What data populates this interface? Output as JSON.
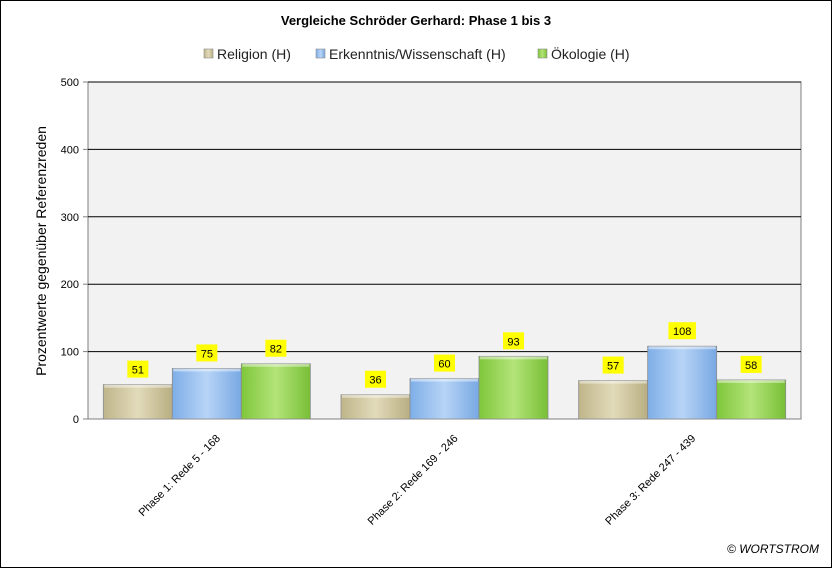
{
  "chart_data": {
    "type": "bar",
    "title": "Vergleiche Schröder Gerhard: Phase 1 bis 3",
    "ylabel": "Prozentwerte  gegenüber Referenzreden",
    "xlabel": "",
    "ylim": [
      0,
      500
    ],
    "yticks": [
      0,
      100,
      200,
      300,
      400,
      500
    ],
    "grid": true,
    "legend_position": "top",
    "categories": [
      "Phase 1: Rede 5 - 168",
      "Phase 2: Rede 169 - 246",
      "Phase 3: Rede 247 - 439"
    ],
    "series": [
      {
        "name": "Religion (H)",
        "values": [
          51,
          36,
          57
        ],
        "color": "#d5cca4"
      },
      {
        "name": "Erkenntnis/Wissenschaft (H)",
        "values": [
          75,
          60,
          108
        ],
        "color": "#9dc3f0"
      },
      {
        "name": "Ökologie (H)",
        "values": [
          82,
          93,
          58
        ],
        "color": "#9ed85a"
      }
    ],
    "data_label_color": "#ffff00",
    "plot_background": "#f2f2f2"
  },
  "footer": {
    "copyright": "© WORTSTROM"
  }
}
